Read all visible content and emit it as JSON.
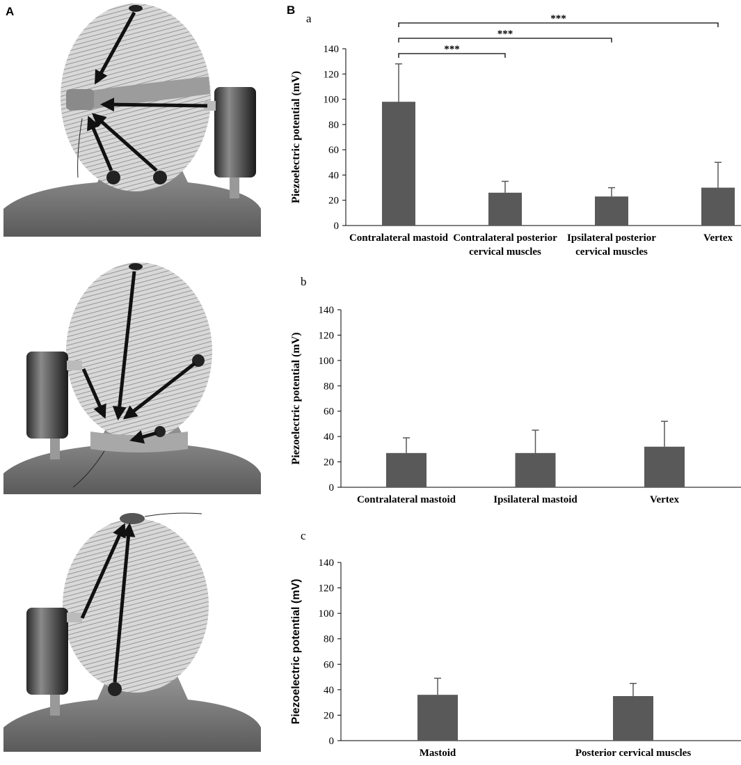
{
  "panel_labels": [
    "A",
    "B"
  ],
  "chart_data": [
    {
      "type": "bar",
      "label": "a",
      "y_label": "Piezoelectric potential (mV)",
      "color": "#595959",
      "categories": [
        "Contralateral mastoid",
        "Contralateral posterior cervical muscles",
        "Ipsilateral posterior cervical muscles",
        "Vertex"
      ],
      "values": [
        98,
        26,
        23,
        30
      ],
      "errors": [
        30,
        9,
        7,
        20
      ],
      "ylim": [
        0,
        140
      ],
      "yticks": [
        0,
        20,
        40,
        60,
        80,
        100,
        120,
        140
      ],
      "annotations": [
        {
          "text": "***",
          "between": [
            "Contralateral mastoid",
            "Contralateral posterior cervical muscles"
          ]
        },
        {
          "text": "***",
          "between": [
            "Contralateral mastoid",
            "Ipsilateral posterior cervical muscles"
          ]
        },
        {
          "text": "***",
          "between": [
            "Contralateral mastoid",
            "Vertex"
          ]
        }
      ]
    },
    {
      "type": "bar",
      "label": "b",
      "y_label": "Piezoelectric potential (mV)",
      "color": "#595959",
      "categories": [
        "Contralateral mastoid",
        "Ipsilateral mastoid",
        "Vertex"
      ],
      "values": [
        27,
        27,
        32
      ],
      "errors": [
        12,
        18,
        20
      ],
      "ylim": [
        0,
        140
      ],
      "yticks": [
        0,
        20,
        40,
        60,
        80,
        100,
        120,
        140
      ]
    },
    {
      "type": "bar",
      "label": "c",
      "y_label": "Piezoelectric potential (mV)",
      "color": "#595959",
      "categories": [
        "Mastoid",
        "Posterior cervical muscles"
      ],
      "values": [
        36,
        35
      ],
      "errors": [
        13,
        10
      ],
      "ylim": [
        0,
        140
      ],
      "yticks": [
        0,
        20,
        40,
        60,
        80,
        100,
        120,
        140
      ]
    }
  ]
}
